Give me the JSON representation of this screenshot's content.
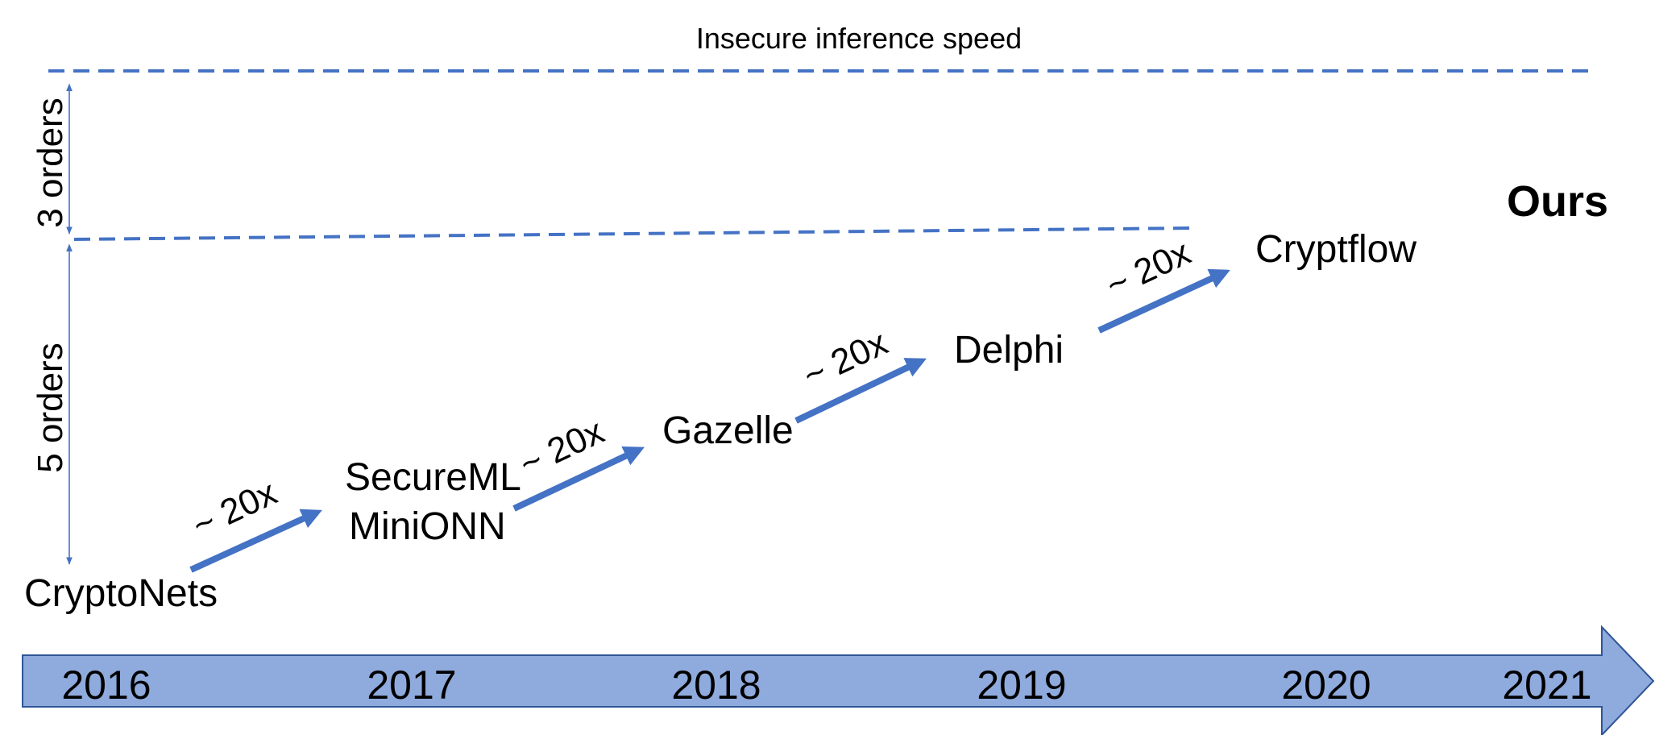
{
  "colors": {
    "accent": "#4472C4",
    "band_fill": "#8FAADC",
    "band_stroke": "#2F5597"
  },
  "top_label": "Insecure inference speed",
  "gap_labels": {
    "upper": "3 orders",
    "lower": "5 orders"
  },
  "ours_label": "Ours",
  "systems": [
    "CryptoNets",
    "SecureML",
    "MiniONN",
    "Gazelle",
    "Delphi",
    "Cryptflow"
  ],
  "speedup_label": "~ 20x",
  "years": [
    "2016",
    "2017",
    "2018",
    "2019",
    "2020",
    "2021"
  ]
}
